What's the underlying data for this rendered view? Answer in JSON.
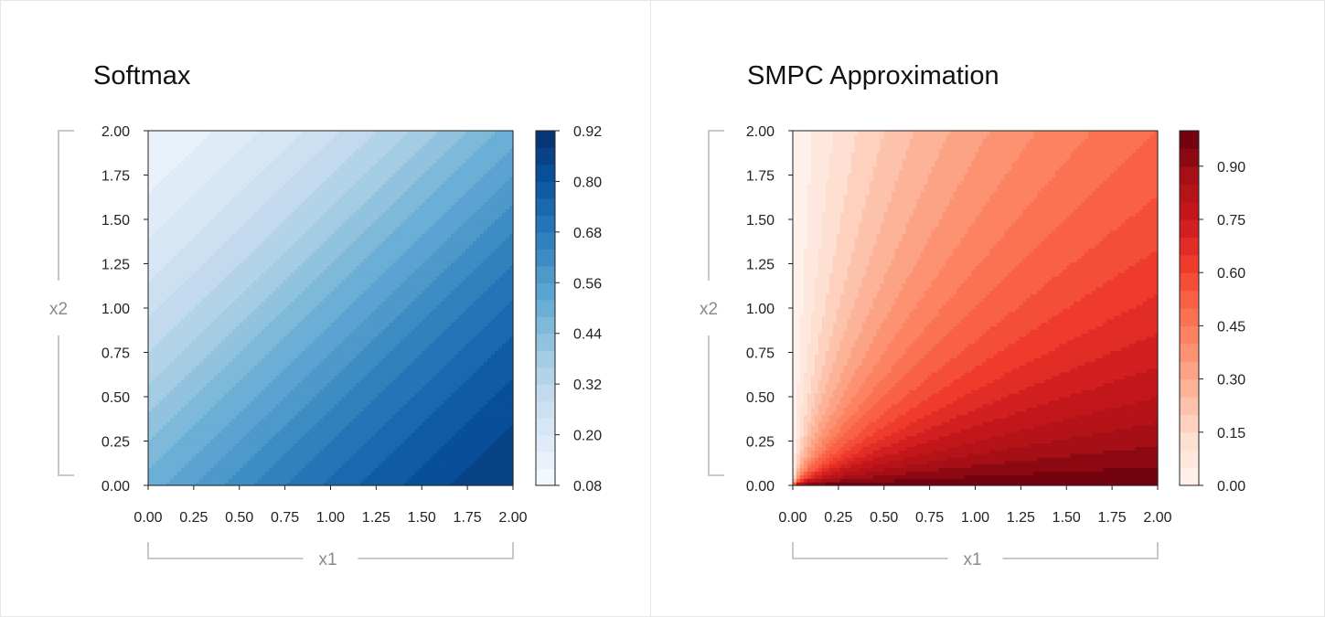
{
  "chart_data": [
    {
      "type": "heatmap",
      "subtype": "filled-contour",
      "title": "Softmax",
      "function": "softmax",
      "xlabel": "x1",
      "ylabel": "x2",
      "xlim": [
        0,
        2
      ],
      "ylim": [
        0,
        2
      ],
      "x_ticks": [
        "0.00",
        "0.25",
        "0.50",
        "0.75",
        "1.00",
        "1.25",
        "1.50",
        "1.75",
        "2.00"
      ],
      "y_ticks": [
        "0.00",
        "0.25",
        "0.50",
        "0.75",
        "1.00",
        "1.25",
        "1.50",
        "1.75",
        "2.00"
      ],
      "colormap": "Blues",
      "colorbar": {
        "range": [
          0.08,
          0.92
        ],
        "levels": 21,
        "tick_values": [
          0.08,
          0.2,
          0.32,
          0.44,
          0.56,
          0.68,
          0.8,
          0.92
        ],
        "tick_labels": [
          "0.08",
          "0.20",
          "0.32",
          "0.44",
          "0.56",
          "0.68",
          "0.80",
          "0.92"
        ]
      }
    },
    {
      "type": "heatmap",
      "subtype": "filled-contour",
      "title": "SMPC Approximation",
      "function": "ratio",
      "xlabel": "x1",
      "ylabel": "x2",
      "xlim": [
        0,
        2
      ],
      "ylim": [
        0,
        2
      ],
      "x_ticks": [
        "0.00",
        "0.25",
        "0.50",
        "0.75",
        "1.00",
        "1.25",
        "1.50",
        "1.75",
        "2.00"
      ],
      "y_ticks": [
        "0.00",
        "0.25",
        "0.50",
        "0.75",
        "1.00",
        "1.25",
        "1.50",
        "1.75",
        "2.00"
      ],
      "colormap": "Reds",
      "colorbar": {
        "range": [
          0.0,
          1.0
        ],
        "levels": 20,
        "tick_values": [
          0.0,
          0.15,
          0.3,
          0.45,
          0.6,
          0.75,
          0.9
        ],
        "tick_labels": [
          "0.00",
          "0.15",
          "0.30",
          "0.45",
          "0.60",
          "0.75",
          "0.90"
        ]
      }
    }
  ]
}
